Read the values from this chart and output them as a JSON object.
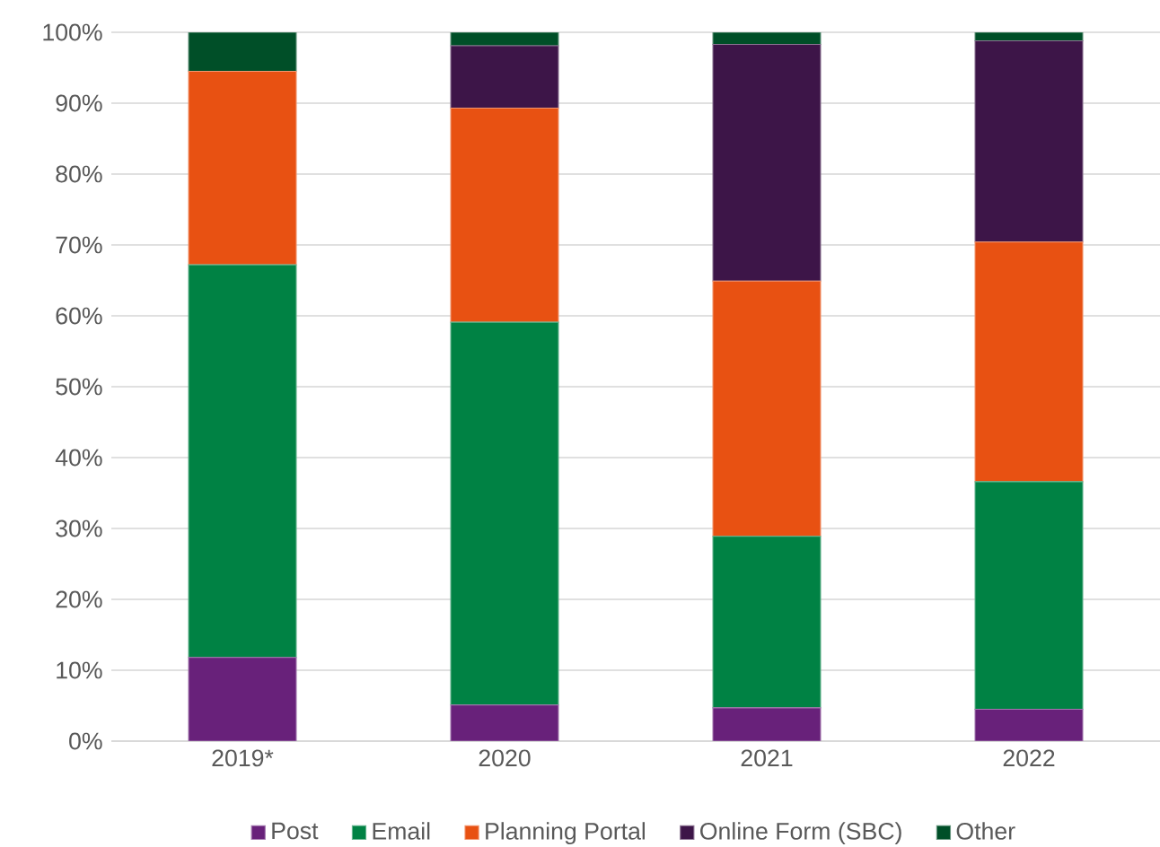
{
  "chart_data": {
    "type": "bar",
    "stacked": true,
    "categories": [
      "2019*",
      "2020",
      "2021",
      "2022"
    ],
    "series": [
      {
        "name": "Post",
        "color": "#68217a",
        "values": [
          11.8,
          5.1,
          4.7,
          4.5
        ]
      },
      {
        "name": "Email",
        "color": "#008244",
        "values": [
          55.4,
          54.0,
          24.2,
          32.1
        ]
      },
      {
        "name": "Planning Portal",
        "color": "#e85112",
        "values": [
          27.3,
          30.2,
          36.0,
          33.8
        ]
      },
      {
        "name": "Online  Form (SBC)",
        "color": "#3d1548",
        "values": [
          0,
          8.8,
          33.4,
          28.4
        ]
      },
      {
        "name": "Other",
        "color": "#004f28",
        "values": [
          5.5,
          1.9,
          1.7,
          1.2
        ]
      }
    ],
    "ylim": [
      0,
      100
    ],
    "yticks": [
      {
        "value": 0,
        "label": "0%"
      },
      {
        "value": 10,
        "label": "10%"
      },
      {
        "value": 20,
        "label": "20%"
      },
      {
        "value": 30,
        "label": "30%"
      },
      {
        "value": 40,
        "label": "40%"
      },
      {
        "value": 50,
        "label": "50%"
      },
      {
        "value": 60,
        "label": "60%"
      },
      {
        "value": 70,
        "label": "70%"
      },
      {
        "value": 80,
        "label": "80%"
      },
      {
        "value": 90,
        "label": "90%"
      },
      {
        "value": 100,
        "label": "100%"
      }
    ],
    "grid": "y",
    "legend": "bottom"
  }
}
